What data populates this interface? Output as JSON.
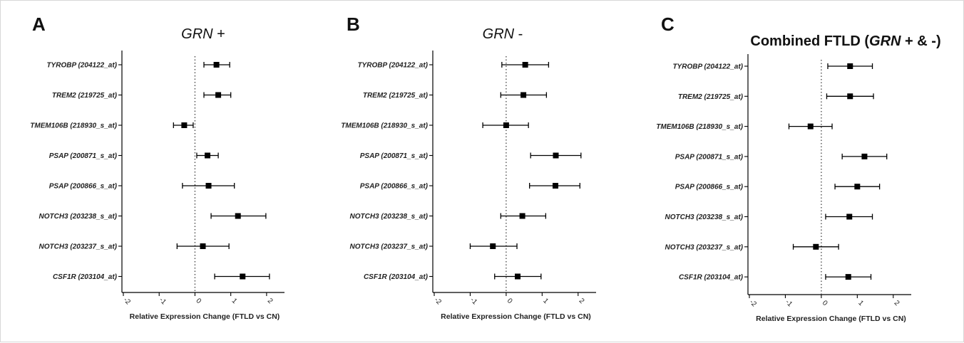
{
  "xlabel": "Relative Expression Change (FTLD vs CN)",
  "xticks": [
    "-2",
    "-1",
    "0",
    "1",
    "2"
  ],
  "panels": [
    {
      "letter": "A",
      "title_parts": [
        {
          "text": "GRN",
          "italic": true
        },
        {
          "text": " +",
          "italic": false
        }
      ]
    },
    {
      "letter": "B",
      "title_parts": [
        {
          "text": "GRN",
          "italic": true
        },
        {
          "text": " -",
          "italic": false
        }
      ]
    },
    {
      "letter": "C",
      "title_parts": [
        {
          "text": "Combined FTLD (",
          "italic": false
        },
        {
          "text": "GRN",
          "italic": true
        },
        {
          "text": " + & -)",
          "italic": false
        }
      ]
    }
  ],
  "chart_data": [
    {
      "type": "scatter",
      "subtype": "forest",
      "title": "GRN +",
      "xlabel": "Relative Expression Change (FTLD vs CN)",
      "xlim": [
        -2,
        2.5
      ],
      "reference_line": 0,
      "categories": [
        "TYROBP (204122_at)",
        "TREM2 (219725_at)",
        "TMEM106B (218930_s_at)",
        "PSAP (200871_s_at)",
        "PSAP (200866_s_at)",
        "NOTCH3 (203238_s_at)",
        "NOTCH3 (203237_s_at)",
        "CSF1R (203104_at)"
      ],
      "values": [
        0.6,
        0.65,
        -0.3,
        0.35,
        0.38,
        1.2,
        0.22,
        1.33
      ],
      "ci_low": [
        0.25,
        0.25,
        -0.6,
        0.05,
        -0.35,
        0.45,
        -0.5,
        0.55
      ],
      "ci_high": [
        0.97,
        1.0,
        -0.05,
        0.65,
        1.1,
        1.98,
        0.95,
        2.08
      ]
    },
    {
      "type": "scatter",
      "subtype": "forest",
      "title": "GRN -",
      "xlabel": "Relative Expression Change (FTLD vs CN)",
      "xlim": [
        -2,
        2.5
      ],
      "reference_line": 0,
      "categories": [
        "TYROBP (204122_at)",
        "TREM2 (219725_at)",
        "TMEM106B (218930_s_at)",
        "PSAP (200871_s_at)",
        "PSAP (200866_s_at)",
        "NOTCH3 (203238_s_at)",
        "NOTCH3 (203237_s_at)",
        "CSF1R (203104_at)"
      ],
      "values": [
        0.53,
        0.48,
        0.0,
        1.38,
        1.37,
        0.45,
        -0.37,
        0.32
      ],
      "ci_low": [
        -0.12,
        -0.15,
        -0.65,
        0.68,
        0.65,
        -0.15,
        -1.0,
        -0.32
      ],
      "ci_high": [
        1.18,
        1.12,
        0.62,
        2.08,
        2.05,
        1.1,
        0.3,
        0.97
      ]
    },
    {
      "type": "scatter",
      "subtype": "forest",
      "title": "Combined FTLD (GRN + & -)",
      "xlabel": "Relative Expression Change (FTLD vs CN)",
      "xlim": [
        -2,
        2.5
      ],
      "reference_line": 0,
      "categories": [
        "TYROBP (204122_at)",
        "TREM2 (219725_at)",
        "TMEM106B (218930_s_at)",
        "PSAP (200871_s_at)",
        "PSAP (200866_s_at)",
        "NOTCH3 (203238_s_at)",
        "NOTCH3 (203237_s_at)",
        "CSF1R (203104_at)"
      ],
      "values": [
        0.8,
        0.8,
        -0.3,
        1.2,
        1.0,
        0.78,
        -0.15,
        0.75
      ],
      "ci_low": [
        0.18,
        0.15,
        -0.9,
        0.58,
        0.38,
        0.12,
        -0.78,
        0.12
      ],
      "ci_high": [
        1.42,
        1.45,
        0.3,
        1.82,
        1.62,
        1.42,
        0.48,
        1.38
      ]
    }
  ]
}
